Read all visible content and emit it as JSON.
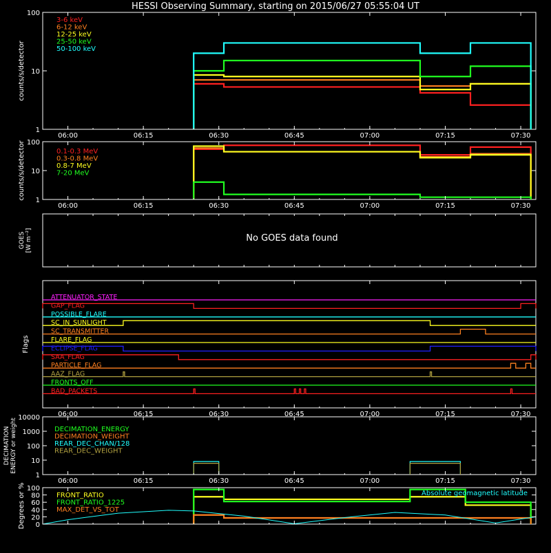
{
  "title": "HESSI Observing Summary, starting on 2015/06/27 05:55:04 UT",
  "chart_data": [
    {
      "type": "line",
      "ylabel": "counts/s/detector",
      "y_scale": "log",
      "ylim": [
        1,
        100
      ],
      "yticks": [
        "1",
        "10",
        "100"
      ],
      "xlim": [
        "05:55",
        "07:33"
      ],
      "xticks": [
        "06:00",
        "06:15",
        "06:30",
        "06:45",
        "07:00",
        "07:15",
        "07:30"
      ],
      "series": [
        {
          "name": "3-6 keV",
          "color": "#ff2020",
          "segments": [
            {
              "x": [
                "06:25",
                "06:31"
              ],
              "y": 6
            },
            {
              "x": [
                "06:31",
                "07:10"
              ],
              "y": 5.3
            },
            {
              "x": [
                "07:10",
                "07:20"
              ],
              "y": 4.2
            },
            {
              "x": [
                "07:20",
                "07:32"
              ],
              "y": 2.6
            }
          ]
        },
        {
          "name": "6-12 keV",
          "color": "#ff8020",
          "segments": [
            {
              "x": [
                "06:25",
                "06:31"
              ],
              "y": 7
            },
            {
              "x": [
                "06:31",
                "07:10"
              ],
              "y": 7
            },
            {
              "x": [
                "07:10",
                "07:20"
              ],
              "y": 5.5
            },
            {
              "x": [
                "07:20",
                "07:32"
              ],
              "y": 6
            }
          ]
        },
        {
          "name": "12-25 keV",
          "color": "#ffff20",
          "segments": [
            {
              "x": [
                "06:25",
                "06:31"
              ],
              "y": 8.5
            },
            {
              "x": [
                "06:31",
                "07:10"
              ],
              "y": 8
            },
            {
              "x": [
                "07:10",
                "07:20"
              ],
              "y": 4.8
            },
            {
              "x": [
                "07:20",
                "07:32"
              ],
              "y": 6
            }
          ]
        },
        {
          "name": "25-50 keV",
          "color": "#20ff20",
          "segments": [
            {
              "x": [
                "06:25",
                "06:31"
              ],
              "y": 10
            },
            {
              "x": [
                "06:31",
                "07:10"
              ],
              "y": 15
            },
            {
              "x": [
                "07:10",
                "07:20"
              ],
              "y": 8
            },
            {
              "x": [
                "07:20",
                "07:32"
              ],
              "y": 12
            }
          ]
        },
        {
          "name": "50-100 keV",
          "color": "#20ffff",
          "segments": [
            {
              "x": [
                "06:25",
                "06:31"
              ],
              "y": 20
            },
            {
              "x": [
                "06:31",
                "07:10"
              ],
              "y": 30
            },
            {
              "x": [
                "07:10",
                "07:20"
              ],
              "y": 20
            },
            {
              "x": [
                "07:20",
                "07:32"
              ],
              "y": 30
            }
          ]
        }
      ]
    },
    {
      "type": "line",
      "ylabel": "counts/s/detector",
      "y_scale": "log",
      "ylim": [
        1,
        100
      ],
      "yticks": [
        "1",
        "10",
        "100"
      ],
      "xticks": [
        "06:00",
        "06:15",
        "06:30",
        "06:45",
        "07:00",
        "07:15",
        "07:30"
      ],
      "series": [
        {
          "name": "0.1-0.3 MeV",
          "color": "#ff2020",
          "segments": [
            {
              "x": [
                "06:25",
                "06:31"
              ],
              "y": 55
            },
            {
              "x": [
                "06:31",
                "07:10"
              ],
              "y": 75
            },
            {
              "x": [
                "07:10",
                "07:20"
              ],
              "y": 35
            },
            {
              "x": [
                "07:20",
                "07:32"
              ],
              "y": 65
            }
          ]
        },
        {
          "name": "0.3-0.8 MeV",
          "color": "#ff8020",
          "segments": [
            {
              "x": [
                "06:25",
                "06:31"
              ],
              "y": 60
            },
            {
              "x": [
                "06:31",
                "07:10"
              ],
              "y": 45
            },
            {
              "x": [
                "07:10",
                "07:20"
              ],
              "y": 30
            },
            {
              "x": [
                "07:20",
                "07:32"
              ],
              "y": 38
            }
          ]
        },
        {
          "name": "0.8-7 MeV",
          "color": "#ffff20",
          "segments": [
            {
              "x": [
                "06:25",
                "06:31"
              ],
              "y": 70
            },
            {
              "x": [
                "06:31",
                "07:10"
              ],
              "y": 45
            },
            {
              "x": [
                "07:10",
                "07:20"
              ],
              "y": 28
            },
            {
              "x": [
                "07:20",
                "07:32"
              ],
              "y": 35
            }
          ]
        },
        {
          "name": "7-20 MeV",
          "color": "#20ff20",
          "segments": [
            {
              "x": [
                "06:25",
                "06:31"
              ],
              "y": 4
            },
            {
              "x": [
                "06:31",
                "07:10"
              ],
              "y": 1.5
            },
            {
              "x": [
                "07:10",
                "07:20"
              ],
              "y": 1.2
            },
            {
              "x": [
                "07:20",
                "07:32"
              ],
              "y": 1.2
            }
          ]
        }
      ]
    },
    {
      "type": "line",
      "ylabel": "GOES",
      "ylabel_unit": "[W m⁻²]",
      "message": "No GOES data found",
      "series": []
    },
    {
      "type": "line",
      "ylabel": "Flags",
      "flags": [
        {
          "name": "ATTENUATOR_STATE",
          "color": "#ff20ff",
          "segments": []
        },
        {
          "name": "GAP_FLAG",
          "color": "#ff2020",
          "high": [
            [
              "05:55",
              "06:25"
            ],
            [
              "07:30",
              "07:33"
            ]
          ]
        },
        {
          "name": "POSSIBLE_FLARE",
          "color": "#20ffff",
          "high": []
        },
        {
          "name": "SC_IN_SUNLIGHT",
          "color": "#ffff20",
          "high": [
            [
              "06:11",
              "07:12"
            ]
          ]
        },
        {
          "name": "SC_TRANSMITTER",
          "color": "#ff8020",
          "high": [
            [
              "07:18",
              "07:23"
            ]
          ]
        },
        {
          "name": "FLARE_FLAG",
          "color": "#ffff20",
          "high": []
        },
        {
          "name": "ECLIPSE_FLAG",
          "color": "#2020ff",
          "high": [
            [
              "05:55",
              "06:11"
            ],
            [
              "07:12",
              "07:33"
            ]
          ]
        },
        {
          "name": "SAA_FLAG",
          "color": "#ff2020",
          "high": [
            [
              "05:55",
              "06:22"
            ],
            [
              "07:32",
              "07:33"
            ]
          ]
        },
        {
          "name": "PARTICLE_FLAG",
          "color": "#ff8020",
          "high": [
            [
              "07:28",
              "07:29"
            ],
            [
              "07:31",
              "07:32"
            ]
          ]
        },
        {
          "name": "AAZ_FLAG",
          "color": "#b0a040",
          "high": [
            [
              "06:11",
              "06:11"
            ],
            [
              "07:12",
              "07:12"
            ]
          ]
        },
        {
          "name": "FRONTS_OFF",
          "color": "#20ff20",
          "high": []
        },
        {
          "name": "BAD_PACKETS",
          "color": "#ff2020",
          "high": [
            [
              "06:25",
              "06:25"
            ],
            [
              "06:45",
              "06:45"
            ],
            [
              "06:46",
              "06:46"
            ],
            [
              "06:47",
              "06:47"
            ],
            [
              "07:28",
              "07:28"
            ]
          ]
        }
      ]
    },
    {
      "type": "line",
      "ylabel": "DECIMATION ENERGY or weight",
      "y_scale": "log",
      "ylim": [
        1,
        10000
      ],
      "yticks": [
        "1",
        "10",
        "100",
        "1000",
        "10000"
      ],
      "xticks": [
        "06:00",
        "06:15",
        "06:30",
        "06:45",
        "07:00",
        "07:15",
        "07:30"
      ],
      "series": [
        {
          "name": "DECIMATION_ENERGY",
          "color": "#20ff20",
          "segments": []
        },
        {
          "name": "DECIMATION_WEIGHT",
          "color": "#ff8020",
          "segments": []
        },
        {
          "name": "REAR_DEC_CHAN/128",
          "color": "#20ffff",
          "segments": [
            {
              "x": [
                "06:25",
                "06:30"
              ],
              "y": 8
            },
            {
              "x": [
                "07:08",
                "07:18"
              ],
              "y": 8
            }
          ]
        },
        {
          "name": "REAR_DEC_WEIGHT",
          "color": "#b0a040",
          "segments": [
            {
              "x": [
                "06:25",
                "06:30"
              ],
              "y": 6
            },
            {
              "x": [
                "07:08",
                "07:18"
              ],
              "y": 6
            }
          ]
        }
      ]
    },
    {
      "type": "line",
      "ylabel": "Degrees or %",
      "ylim": [
        0,
        100
      ],
      "yticks": [
        "0",
        "20",
        "40",
        "60",
        "80",
        "100"
      ],
      "xticks": [
        "06:00",
        "06:15",
        "06:30",
        "06:45",
        "07:00",
        "07:15",
        "07:30"
      ],
      "annotation": "Absolute geomagnetic latitude",
      "series": [
        {
          "name": "FRONT_RATIO",
          "color": "#ffff20",
          "segments": [
            {
              "x": [
                "06:25",
                "06:31"
              ],
              "y": 75
            },
            {
              "x": [
                "06:31",
                "07:08"
              ],
              "y": 68
            },
            {
              "x": [
                "07:08",
                "07:19"
              ],
              "y": 75
            },
            {
              "x": [
                "07:19",
                "07:32"
              ],
              "y": 52
            }
          ]
        },
        {
          "name": "FRONT_RATIO_1225",
          "color": "#20ff20",
          "segments": [
            {
              "x": [
                "06:25",
                "06:31"
              ],
              "y": 95
            },
            {
              "x": [
                "06:31",
                "07:08"
              ],
              "y": 62
            },
            {
              "x": [
                "07:08",
                "07:19"
              ],
              "y": 95
            },
            {
              "x": [
                "07:19",
                "07:32"
              ],
              "y": 60
            }
          ]
        },
        {
          "name": "MAX_DET_VS_TOT",
          "color": "#ff8020",
          "segments": [
            {
              "x": [
                "06:25",
                "06:31"
              ],
              "y": 25
            },
            {
              "x": [
                "06:31",
                "07:32"
              ],
              "y": 17
            }
          ]
        },
        {
          "name": "Absolute geomagnetic latitude",
          "color": "#20ffff",
          "type": "curve",
          "x": [
            "05:55",
            "06:00",
            "06:10",
            "06:20",
            "06:25",
            "06:35",
            "06:45",
            "06:55",
            "07:05",
            "07:15",
            "07:25",
            "07:30",
            "07:33"
          ],
          "values": [
            0,
            12,
            30,
            38,
            36,
            22,
            1,
            18,
            32,
            25,
            3,
            14,
            20
          ]
        }
      ]
    }
  ]
}
